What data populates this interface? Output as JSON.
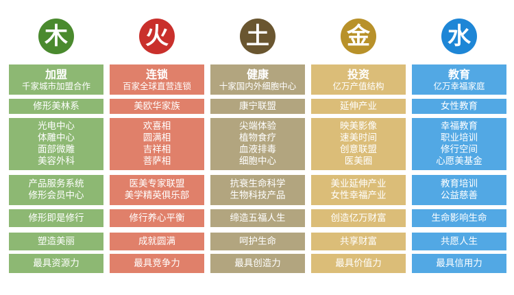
{
  "columns": [
    {
      "key": "wood",
      "symbol": "木",
      "circle_color": "#4a8a2e",
      "cell_color": "#8db873",
      "title": "加盟",
      "subtitle": "千家城市加盟合作",
      "brand": "修形美林系",
      "services": [
        "光电中心",
        "体雕中心",
        "面部微雕",
        "美容外科"
      ],
      "systems": [
        "产品服务系统",
        "修形会员中心"
      ],
      "motto": "修形即是修行",
      "goal": "塑造美丽",
      "strength": "最具资源力"
    },
    {
      "key": "fire",
      "symbol": "火",
      "circle_color": "#c9302c",
      "cell_color": "#e0806a",
      "title": "连锁",
      "subtitle": "百家全球直营连锁",
      "brand": "美欧华家族",
      "services": [
        "欢喜相",
        "圆满相",
        "吉祥相",
        "菩萨相"
      ],
      "systems": [
        "医美专家联盟",
        "美学精英俱乐部"
      ],
      "motto": "修行养心平衡",
      "goal": "成就圆满",
      "strength": "最具竞争力"
    },
    {
      "key": "earth",
      "symbol": "土",
      "circle_color": "#6a5630",
      "cell_color": "#b2a57f",
      "title": "健康",
      "subtitle": "十家国内外细胞中心",
      "brand": "康宁联盟",
      "services": [
        "尖端体验",
        "植物食疗",
        "血液排毒",
        "细胞中心"
      ],
      "systems": [
        "抗衰生命科学",
        "生物科技产品"
      ],
      "motto": "缔造五福人生",
      "goal": "呵护生命",
      "strength": "最具创造力"
    },
    {
      "key": "metal",
      "symbol": "金",
      "circle_color": "#b8912a",
      "cell_color": "#dbbd78",
      "title": "投资",
      "subtitle": "亿万产值结构",
      "brand": "延伸产业",
      "services": [
        "映美影像",
        "速美时间",
        "创意联盟",
        "医美圈"
      ],
      "systems": [
        "美业延伸产业",
        "女性幸福产业"
      ],
      "motto": "创造亿万财富",
      "goal": "共享财富",
      "strength": "最具价值力"
    },
    {
      "key": "water",
      "symbol": "水",
      "circle_color": "#1e86d6",
      "cell_color": "#52a8e4",
      "title": "教育",
      "subtitle": "亿万幸福家庭",
      "brand": "女性教育",
      "services": [
        "幸福教育",
        "职业培训",
        "修行空间",
        "心愿美基金"
      ],
      "systems": [
        "教育培训",
        "公益慈善"
      ],
      "motto": "生命影响生命",
      "goal": "共愿人生",
      "strength": "最具信用力"
    }
  ]
}
